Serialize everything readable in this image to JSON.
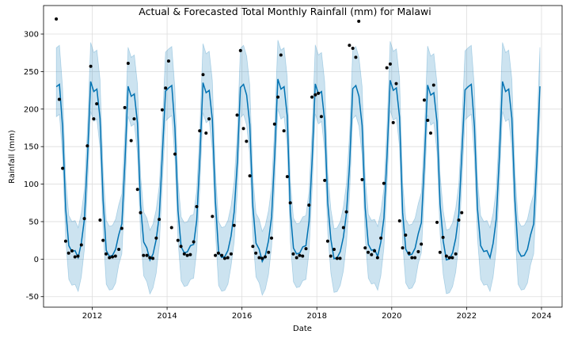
{
  "chart_data": {
    "type": "line",
    "title": "Actual & Forecasted Total Monthly Rainfall (mm) for Malawi",
    "xlabel": "Date",
    "ylabel": "Rainfall (mm)",
    "xlim": [
      2010.7,
      2024.55
    ],
    "ylim": [
      -64,
      338
    ],
    "xticks": [
      2012,
      2014,
      2016,
      2018,
      2020,
      2022,
      2024
    ],
    "yticks": [
      -50,
      0,
      50,
      100,
      150,
      200,
      250,
      300
    ],
    "grid": true,
    "season_pattern": {
      "month_forecast": [
        225,
        225,
        183,
        70,
        18,
        7,
        5,
        10,
        26,
        55,
        135,
        232
      ],
      "band_half_width": 40
    },
    "series": [
      {
        "kind": "actual",
        "points": [
          [
            2011.04,
            320
          ],
          [
            2011.12,
            213
          ],
          [
            2011.21,
            121
          ],
          [
            2011.29,
            24
          ],
          [
            2011.37,
            8
          ],
          [
            2011.46,
            11
          ],
          [
            2011.54,
            3
          ],
          [
            2011.62,
            4
          ],
          [
            2011.71,
            19
          ],
          [
            2011.79,
            54
          ],
          [
            2011.87,
            151
          ],
          [
            2011.96,
            257
          ],
          [
            2012.04,
            187
          ],
          [
            2012.12,
            207
          ],
          [
            2012.21,
            52
          ],
          [
            2012.29,
            25
          ],
          [
            2012.37,
            7
          ],
          [
            2012.46,
            2
          ],
          [
            2012.54,
            3
          ],
          [
            2012.62,
            4
          ],
          [
            2012.71,
            13
          ],
          [
            2012.79,
            41
          ],
          [
            2012.87,
            202
          ],
          [
            2012.96,
            261
          ],
          [
            2013.04,
            158
          ],
          [
            2013.12,
            187
          ],
          [
            2013.21,
            93
          ],
          [
            2013.29,
            62
          ],
          [
            2013.37,
            5
          ],
          [
            2013.46,
            5
          ],
          [
            2013.54,
            2
          ],
          [
            2013.62,
            1
          ],
          [
            2013.71,
            28
          ],
          [
            2013.79,
            53
          ],
          [
            2013.87,
            199
          ],
          [
            2013.96,
            228
          ],
          [
            2014.04,
            264
          ],
          [
            2014.12,
            42
          ],
          [
            2014.21,
            140
          ],
          [
            2014.29,
            25
          ],
          [
            2014.37,
            17
          ],
          [
            2014.46,
            7
          ],
          [
            2014.54,
            5
          ],
          [
            2014.62,
            6
          ],
          [
            2014.71,
            23
          ],
          [
            2014.79,
            70
          ],
          [
            2014.87,
            171
          ],
          [
            2014.96,
            246
          ],
          [
            2015.04,
            168
          ],
          [
            2015.12,
            187
          ],
          [
            2015.21,
            57
          ],
          [
            2015.29,
            5
          ],
          [
            2015.37,
            8
          ],
          [
            2015.46,
            5
          ],
          [
            2015.54,
            1
          ],
          [
            2015.62,
            2
          ],
          [
            2015.71,
            7
          ],
          [
            2015.79,
            45
          ],
          [
            2015.87,
            192
          ],
          [
            2015.96,
            278
          ],
          [
            2016.04,
            174
          ],
          [
            2016.12,
            157
          ],
          [
            2016.21,
            111
          ],
          [
            2016.29,
            17
          ],
          [
            2016.37,
            8
          ],
          [
            2016.46,
            2
          ],
          [
            2016.54,
            1
          ],
          [
            2016.62,
            3
          ],
          [
            2016.71,
            9
          ],
          [
            2016.79,
            28
          ],
          [
            2016.87,
            180
          ],
          [
            2016.96,
            216
          ],
          [
            2017.04,
            272
          ],
          [
            2017.12,
            171
          ],
          [
            2017.21,
            110
          ],
          [
            2017.29,
            75
          ],
          [
            2017.37,
            7
          ],
          [
            2017.46,
            2
          ],
          [
            2017.54,
            5
          ],
          [
            2017.62,
            4
          ],
          [
            2017.71,
            14
          ],
          [
            2017.79,
            72
          ],
          [
            2017.87,
            216
          ],
          [
            2017.96,
            219
          ],
          [
            2018.04,
            221
          ],
          [
            2018.12,
            190
          ],
          [
            2018.21,
            105
          ],
          [
            2018.29,
            24
          ],
          [
            2018.37,
            4
          ],
          [
            2018.46,
            13
          ],
          [
            2018.54,
            1
          ],
          [
            2018.62,
            1
          ],
          [
            2018.71,
            42
          ],
          [
            2018.79,
            63
          ],
          [
            2018.87,
            285
          ],
          [
            2018.96,
            281
          ],
          [
            2019.04,
            269
          ],
          [
            2019.12,
            317
          ],
          [
            2019.21,
            106
          ],
          [
            2019.29,
            15
          ],
          [
            2019.37,
            9
          ],
          [
            2019.46,
            6
          ],
          [
            2019.54,
            11
          ],
          [
            2019.62,
            2
          ],
          [
            2019.71,
            28
          ],
          [
            2019.79,
            101
          ],
          [
            2019.87,
            255
          ],
          [
            2019.96,
            260
          ],
          [
            2020.04,
            182
          ],
          [
            2020.12,
            234
          ],
          [
            2020.21,
            51
          ],
          [
            2020.29,
            15
          ],
          [
            2020.37,
            32
          ],
          [
            2020.46,
            8
          ],
          [
            2020.54,
            2
          ],
          [
            2020.62,
            2
          ],
          [
            2020.71,
            10
          ],
          [
            2020.79,
            20
          ],
          [
            2020.87,
            212
          ],
          [
            2020.96,
            185
          ],
          [
            2021.04,
            168
          ],
          [
            2021.12,
            232
          ],
          [
            2021.21,
            49
          ],
          [
            2021.29,
            9
          ],
          [
            2021.37,
            29
          ],
          [
            2021.46,
            4
          ],
          [
            2021.54,
            2
          ],
          [
            2021.62,
            2
          ],
          [
            2021.71,
            7
          ],
          [
            2021.79,
            52
          ],
          [
            2021.87,
            62
          ]
        ]
      }
    ]
  }
}
